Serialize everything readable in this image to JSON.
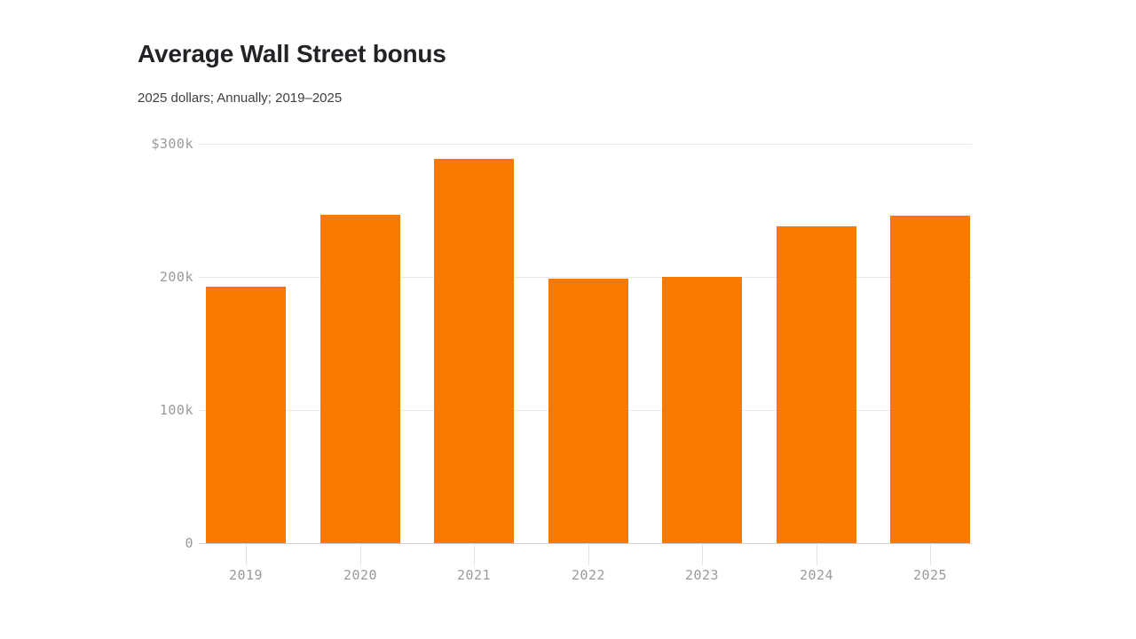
{
  "header": {
    "title": "Average Wall Street bonus",
    "subtitle": "2025 dollars; Annually; 2019–2025"
  },
  "chart_data": {
    "type": "bar",
    "title": "Average Wall Street bonus",
    "subtitle": "2025 dollars; Annually; 2019–2025",
    "categories": [
      "2019",
      "2020",
      "2021",
      "2022",
      "2023",
      "2024",
      "2025"
    ],
    "values": [
      193000,
      247000,
      289000,
      199000,
      200000,
      238000,
      246000
    ],
    "xlabel": "",
    "ylabel": "",
    "ylim": [
      0,
      300000
    ],
    "yticks": [
      {
        "value": 0,
        "label": "0"
      },
      {
        "value": 100000,
        "label": "100k"
      },
      {
        "value": 200000,
        "label": "200k"
      },
      {
        "value": 300000,
        "label": "$300k"
      }
    ],
    "bar_color": "#fb7900",
    "grid": "horizontal gridlines at 100k/200k/300k",
    "legend": "none"
  }
}
